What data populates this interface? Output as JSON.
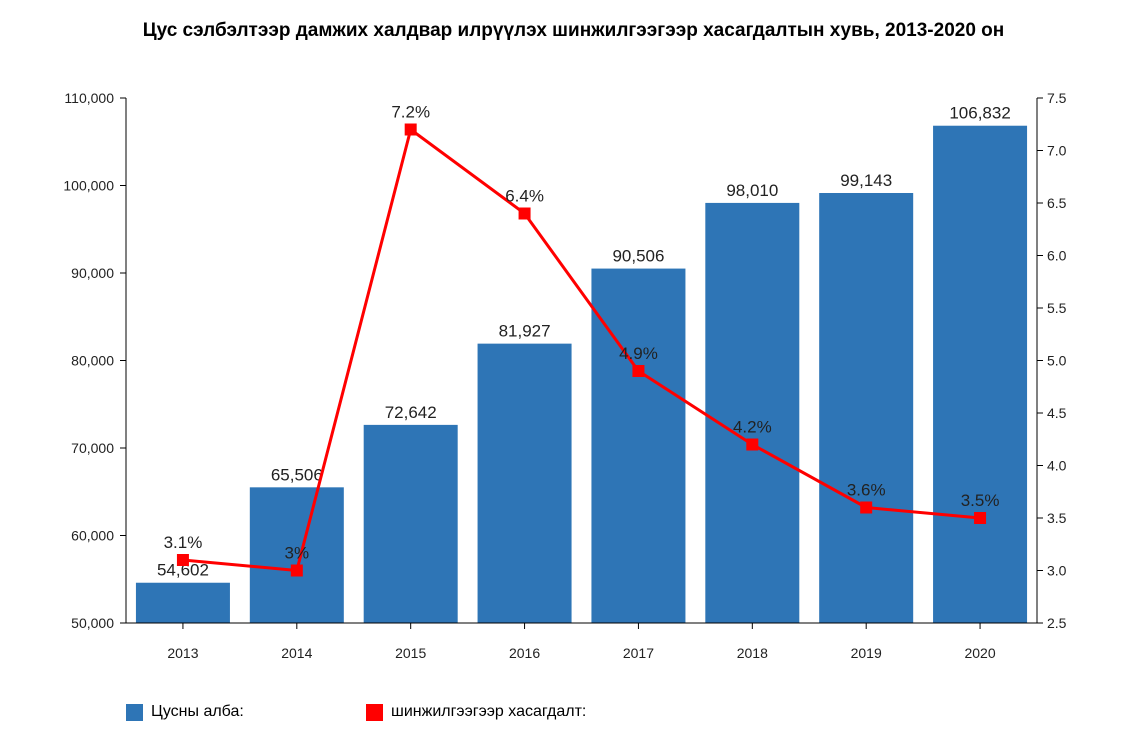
{
  "chart_data": {
    "type": "bar",
    "title": "Цус сэлбэлтээр дамжих халдвар илрүүлэх шинжилгээгээр хасагдалтын хувь, 2013-2020 он",
    "categories": [
      "2013",
      "2014",
      "2015",
      "2016",
      "2017",
      "2018",
      "2019",
      "2020"
    ],
    "series": [
      {
        "name": "Цусны алба:",
        "type": "bar",
        "axis": "left",
        "color": "#2e75b6",
        "values": [
          54602,
          65506,
          72642,
          81927,
          90506,
          98010,
          99143,
          106832
        ],
        "labels": [
          "54,602",
          "65,506",
          "72,642",
          "81,927",
          "90,506",
          "98,010",
          "99,143",
          "106,832"
        ]
      },
      {
        "name": "шинжилгээгээр хасагдалт:",
        "type": "line",
        "axis": "right",
        "color": "#ff0000",
        "values": [
          3.1,
          3.0,
          7.2,
          6.4,
          4.9,
          4.2,
          3.6,
          3.5
        ],
        "labels": [
          "3.1%",
          "3%",
          "7.2%",
          "6.4%",
          "4.9%",
          "4.2%",
          "3.6%",
          "3.5%"
        ]
      }
    ],
    "y_left": {
      "min": 50000,
      "max": 110000,
      "ticks": [
        50000,
        60000,
        70000,
        80000,
        90000,
        100000,
        110000
      ],
      "tick_labels": [
        "50,000",
        "60,000",
        "70,000",
        "80,000",
        "90,000",
        "100,000",
        "110,000"
      ]
    },
    "y_right": {
      "min": 2.5,
      "max": 7.5,
      "ticks": [
        2.5,
        3.0,
        3.5,
        4.0,
        4.5,
        5.0,
        5.5,
        6.0,
        6.5,
        7.0,
        7.5
      ],
      "tick_labels": [
        "2.5",
        "3.0",
        "3.5",
        "4.0",
        "4.5",
        "5.0",
        "5.5",
        "6.0",
        "6.5",
        "7.0",
        "7.5"
      ]
    },
    "grid": false,
    "legend_position": "bottom-left"
  }
}
